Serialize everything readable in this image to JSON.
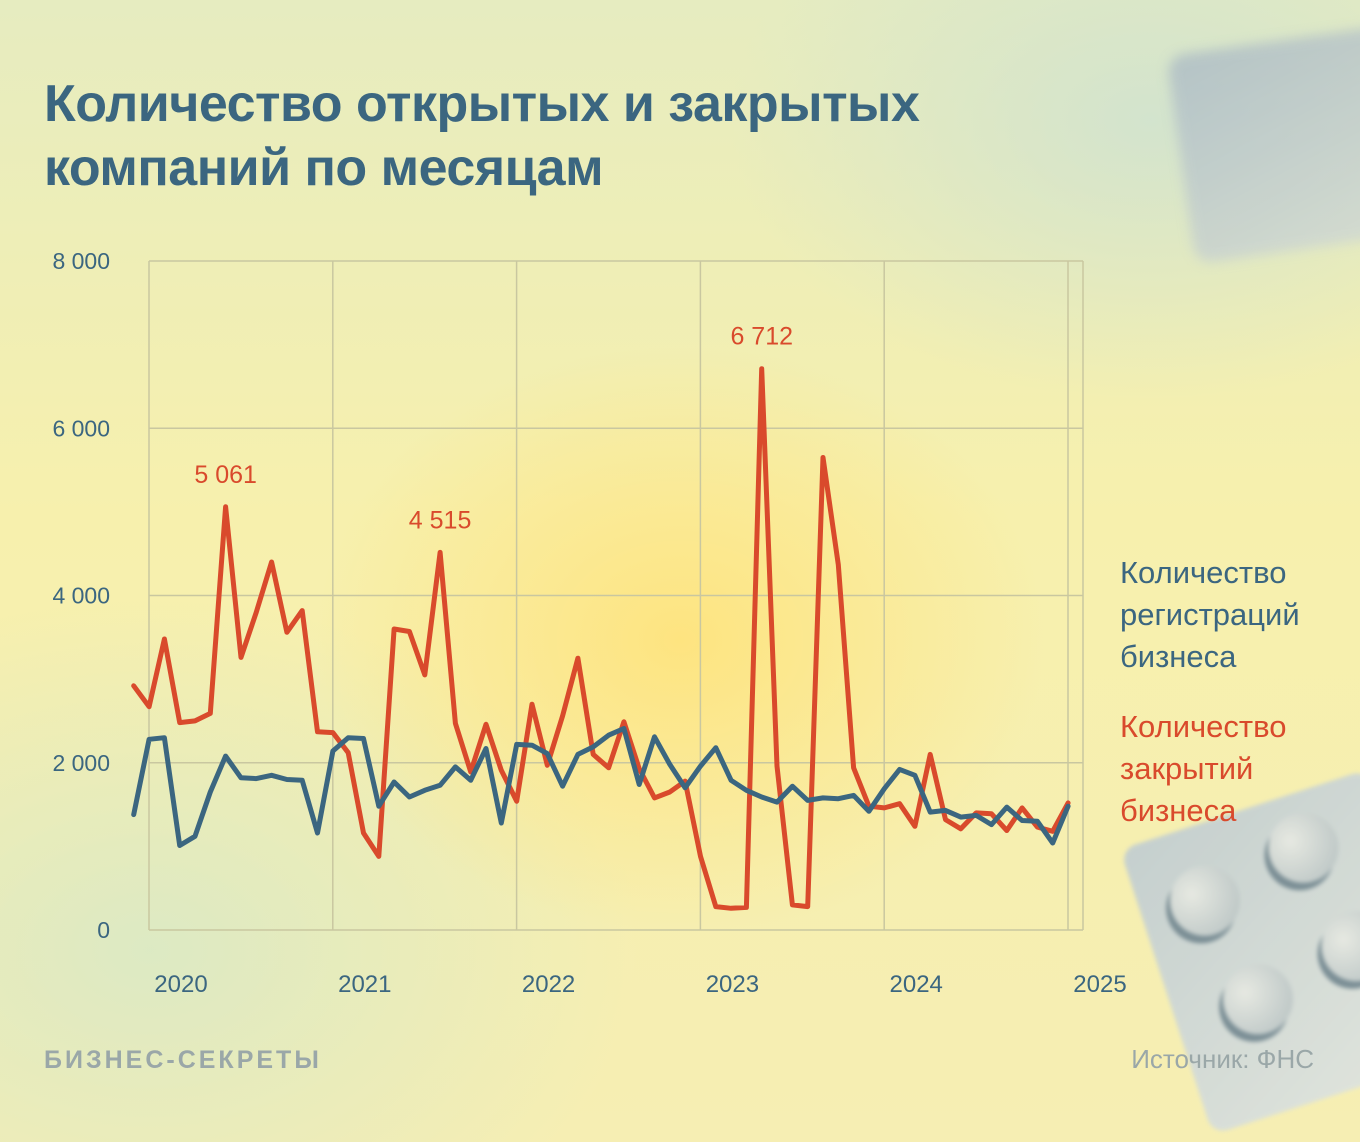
{
  "header": {
    "title_line1": "Количество открытых и закрытых",
    "title_line2": "компаний по месяцам"
  },
  "legend": {
    "registrations_line1": "Количество",
    "registrations_line2": "регистраций",
    "registrations_line3": "бизнеса",
    "closures_line1": "Количество",
    "closures_line2": "закрытий",
    "closures_line3": "бизнеса"
  },
  "footer": {
    "logo": "БИЗНЕС-СЕКРЕТЫ",
    "source": "Источник: ФНС"
  },
  "colors": {
    "registrations": "#3b6680",
    "closures": "#d94a2c",
    "grid": "#c9c7a0",
    "axis_text": "#3b6680"
  },
  "chart_data": {
    "type": "line",
    "title": "Количество открытых и закрытых компаний по месяцам",
    "xlabel": "",
    "ylabel": "",
    "ylim": [
      0,
      8000
    ],
    "y_ticks": [
      0,
      2000,
      4000,
      6000,
      8000
    ],
    "y_tick_labels": [
      "0",
      "2 000",
      "4 000",
      "6 000",
      "8 000"
    ],
    "x_year_ticks": [
      2020,
      2021,
      2022,
      2023,
      2024,
      2025
    ],
    "x_tick_labels": [
      "2020",
      "2021",
      "2022",
      "2023",
      "2024",
      "2025"
    ],
    "x_start": 2019.917,
    "x_step_years": 0.0833333,
    "grid": true,
    "legend_position": "right",
    "series": [
      {
        "name": "Количество регистраций бизнеса",
        "color_key": "registrations",
        "values": [
          1380,
          2280,
          2300,
          1010,
          1120,
          1650,
          2080,
          1820,
          1810,
          1850,
          1800,
          1790,
          1160,
          2140,
          2300,
          2290,
          1480,
          1770,
          1590,
          1670,
          1730,
          1950,
          1790,
          2170,
          1280,
          2220,
          2210,
          2110,
          1720,
          2100,
          2190,
          2330,
          2410,
          1740,
          2310,
          1980,
          1700,
          1960,
          2180,
          1790,
          1670,
          1590,
          1530,
          1720,
          1550,
          1580,
          1570,
          1610,
          1420,
          1690,
          1920,
          1850,
          1410,
          1430,
          1350,
          1370,
          1260,
          1470,
          1310,
          1300,
          1040,
          1480
        ]
      },
      {
        "name": "Количество закрытий бизнеса",
        "color_key": "closures",
        "values": [
          2920,
          2670,
          3480,
          2480,
          2500,
          2590,
          5061,
          3260,
          3800,
          4400,
          3560,
          3820,
          2370,
          2360,
          2120,
          1160,
          880,
          3600,
          3570,
          3050,
          4515,
          2470,
          1890,
          2460,
          1910,
          1540,
          2700,
          1970,
          2560,
          3250,
          2100,
          1940,
          2490,
          1930,
          1580,
          1650,
          1780,
          880,
          280,
          260,
          270,
          6712,
          1960,
          300,
          280,
          5650,
          4370,
          1940,
          1480,
          1460,
          1510,
          1240,
          2100,
          1320,
          1210,
          1400,
          1390,
          1190,
          1460,
          1230,
          1180,
          1520
        ]
      }
    ],
    "annotations": [
      {
        "series": 1,
        "index": 6,
        "label": "5 061"
      },
      {
        "series": 1,
        "index": 20,
        "label": "4 515"
      },
      {
        "series": 1,
        "index": 41,
        "label": "6 712"
      }
    ]
  }
}
